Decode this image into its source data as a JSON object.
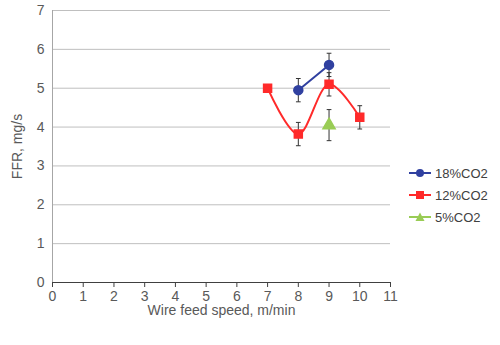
{
  "chart_data": {
    "type": "line",
    "x_label": "Wire feed speed, m/min",
    "y_label": "FFR, mg/s",
    "x": [
      7,
      8,
      9,
      10
    ],
    "series": [
      {
        "name": "18%CO2",
        "color": "#3040a0",
        "marker": "circle",
        "line_style": "solid",
        "values": [
          null,
          4.95,
          5.6,
          null
        ],
        "errors": [
          null,
          0.3,
          0.3,
          null
        ]
      },
      {
        "name": "12%CO2",
        "color": "#ff2a2a",
        "marker": "square",
        "line_style": "smooth",
        "values": [
          5.0,
          3.82,
          5.1,
          4.25
        ],
        "errors": [
          null,
          0.3,
          0.3,
          0.3
        ]
      },
      {
        "name": "5%CO2",
        "color": "#99cc55",
        "marker": "triangle",
        "line_style": "solid",
        "values": [
          null,
          null,
          4.05,
          null
        ],
        "errors": [
          null,
          null,
          0.4,
          null
        ]
      }
    ],
    "xlim": [
      0,
      11
    ],
    "xticks": [
      0,
      1,
      2,
      3,
      4,
      5,
      6,
      7,
      8,
      9,
      10,
      11
    ],
    "ylim": [
      0,
      7
    ],
    "yticks": [
      0,
      1,
      2,
      3,
      4,
      5,
      6,
      7
    ],
    "grid": true,
    "legend": "right"
  }
}
